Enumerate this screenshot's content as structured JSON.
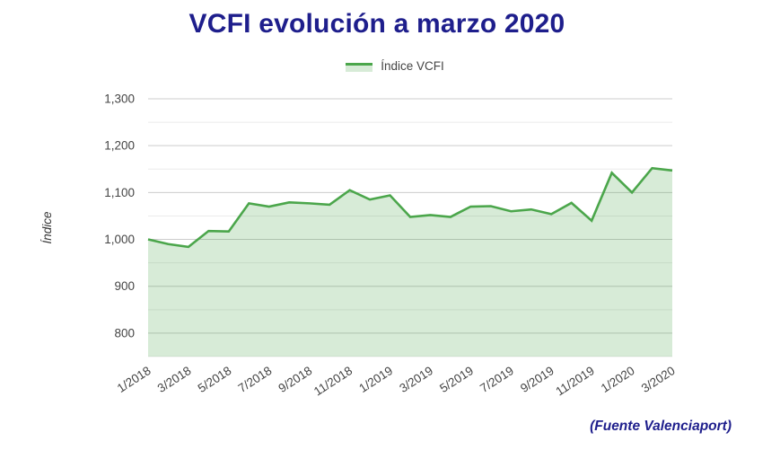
{
  "title": {
    "text": "VCFI evolución a marzo 2020",
    "color": "#1e1e8c"
  },
  "legend": {
    "label": "Índice VCFI"
  },
  "footer": {
    "text": "(Fuente Valenciaport)",
    "color": "#1e1e8c"
  },
  "axes": {
    "tick_label_color": "#444444",
    "axis_title_color": "#333333",
    "grid_major_color": "#cccccc",
    "grid_minor_color": "#ebebeb"
  },
  "chart_data": {
    "type": "area",
    "title": "VCFI evolución a marzo 2020",
    "xlabel": "",
    "ylabel": "Índice",
    "legend_position": "top",
    "legend_entries": [
      "Índice VCFI"
    ],
    "grid": true,
    "ylim": [
      750,
      1300
    ],
    "y_major_ticks": [
      800,
      900,
      1000,
      1100,
      1200,
      1300
    ],
    "y_minor_step": 50,
    "x_label_every": 2,
    "x_label_rotation_deg": -33,
    "x": [
      "1/2018",
      "2/2018",
      "3/2018",
      "4/2018",
      "5/2018",
      "6/2018",
      "7/2018",
      "8/2018",
      "9/2018",
      "10/2018",
      "11/2018",
      "12/2018",
      "1/2019",
      "2/2019",
      "3/2019",
      "4/2019",
      "5/2019",
      "6/2019",
      "7/2019",
      "8/2019",
      "9/2019",
      "10/2019",
      "11/2019",
      "12/2019",
      "1/2020",
      "2/2020",
      "3/2020"
    ],
    "x_tick_labels": [
      "1/2018",
      "3/2018",
      "5/2018",
      "7/2018",
      "9/2018",
      "11/2018",
      "1/2019",
      "3/2019",
      "5/2019",
      "7/2019",
      "9/2019",
      "11/2019",
      "1/2020"
    ],
    "series": [
      {
        "name": "Índice VCFI",
        "line_color": "#4ba64b",
        "fill_color": "rgba(75,166,75,0.22)",
        "values": [
          1000,
          990,
          984,
          1018,
          1017,
          1077,
          1070,
          1079,
          1077,
          1074,
          1105,
          1085,
          1094,
          1048,
          1052,
          1048,
          1070,
          1071,
          1060,
          1064,
          1054,
          1078,
          1040,
          1142,
          1100,
          1152,
          1147
        ]
      }
    ]
  }
}
